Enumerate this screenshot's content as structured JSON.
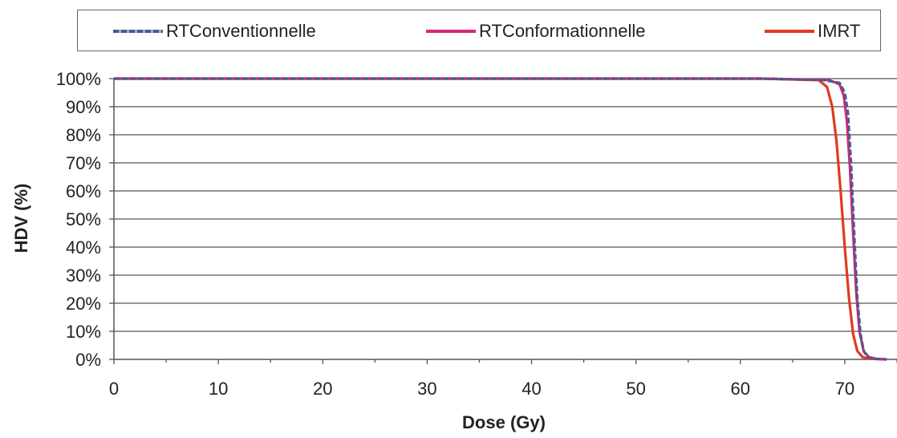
{
  "chart_data": {
    "type": "line",
    "title": "",
    "xlabel": "Dose (Gy)",
    "ylabel": "HDV (%)",
    "xlim": [
      0,
      75
    ],
    "ylim": [
      0,
      100
    ],
    "x_ticks": [
      0,
      10,
      20,
      30,
      40,
      50,
      60,
      70
    ],
    "x_tick_labels": [
      "0",
      "10",
      "20",
      "30",
      "40",
      "50",
      "60",
      "70"
    ],
    "y_ticks": [
      0,
      10,
      20,
      30,
      40,
      50,
      60,
      70,
      80,
      90,
      100
    ],
    "y_tick_labels": [
      "0%",
      "10%",
      "20%",
      "30%",
      "40%",
      "50%",
      "60%",
      "70%",
      "80%",
      "90%",
      "100%"
    ],
    "grid": "horizontal",
    "legend_position": "top",
    "series": [
      {
        "name": "RTConventionnelle",
        "color": "#4a5a8a",
        "dashed": true,
        "x": [
          0,
          62,
          68,
          69.5,
          70,
          70.3,
          70.6,
          70.9,
          71.2,
          71.5,
          71.8,
          72.2,
          73,
          74
        ],
        "y": [
          100,
          100,
          99.5,
          98.5,
          95,
          88,
          70,
          45,
          22,
          9,
          3,
          0.8,
          0.2,
          0
        ]
      },
      {
        "name": "RTConformationnelle",
        "color": "#d02a7c",
        "dashed": false,
        "x": [
          0,
          62,
          68.5,
          69.5,
          69.9,
          70.2,
          70.5,
          70.8,
          71.1,
          71.4,
          71.8,
          72.3,
          73,
          74
        ],
        "y": [
          100,
          100,
          99.5,
          98,
          94,
          85,
          68,
          45,
          24,
          10,
          3,
          0.8,
          0.2,
          0
        ]
      },
      {
        "name": "IMRT",
        "color": "#e03a1e",
        "dashed": false,
        "x": [
          0,
          62,
          67.5,
          68.3,
          68.8,
          69.2,
          69.6,
          70,
          70.4,
          70.8,
          71.2,
          71.7,
          72.5,
          74
        ],
        "y": [
          100,
          100,
          99.5,
          97,
          90,
          78,
          60,
          40,
          22,
          9,
          3,
          0.8,
          0.2,
          0
        ]
      }
    ]
  }
}
